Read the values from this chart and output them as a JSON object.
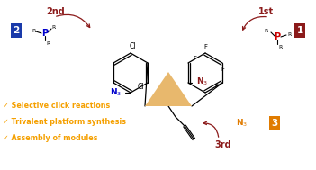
{
  "bg_color": "#ffffff",
  "fig_width": 3.51,
  "fig_height": 1.89,
  "dpi": 100,
  "bullet_items": [
    "✓ Selective click reactions",
    "✓ Trivalent platform synthesis",
    "✓ Assembly of modules"
  ],
  "bullet_color": "#f5a000",
  "bullet_fontsize": 5.8,
  "label1_bg": "#8B1A1A",
  "label2_bg": "#1a3aaa",
  "label3_bg": "#e07b00",
  "ord_color": "#8B1A1A",
  "n3_blue": "#0000cc",
  "n3_red": "#8B1A1A",
  "n3_orange": "#e07b00",
  "triangle_color": "#e8b86d",
  "arrow_color": "#8B1A1A",
  "black": "#000000",
  "blue_p": "#0000cc",
  "red_p": "#cc0000"
}
